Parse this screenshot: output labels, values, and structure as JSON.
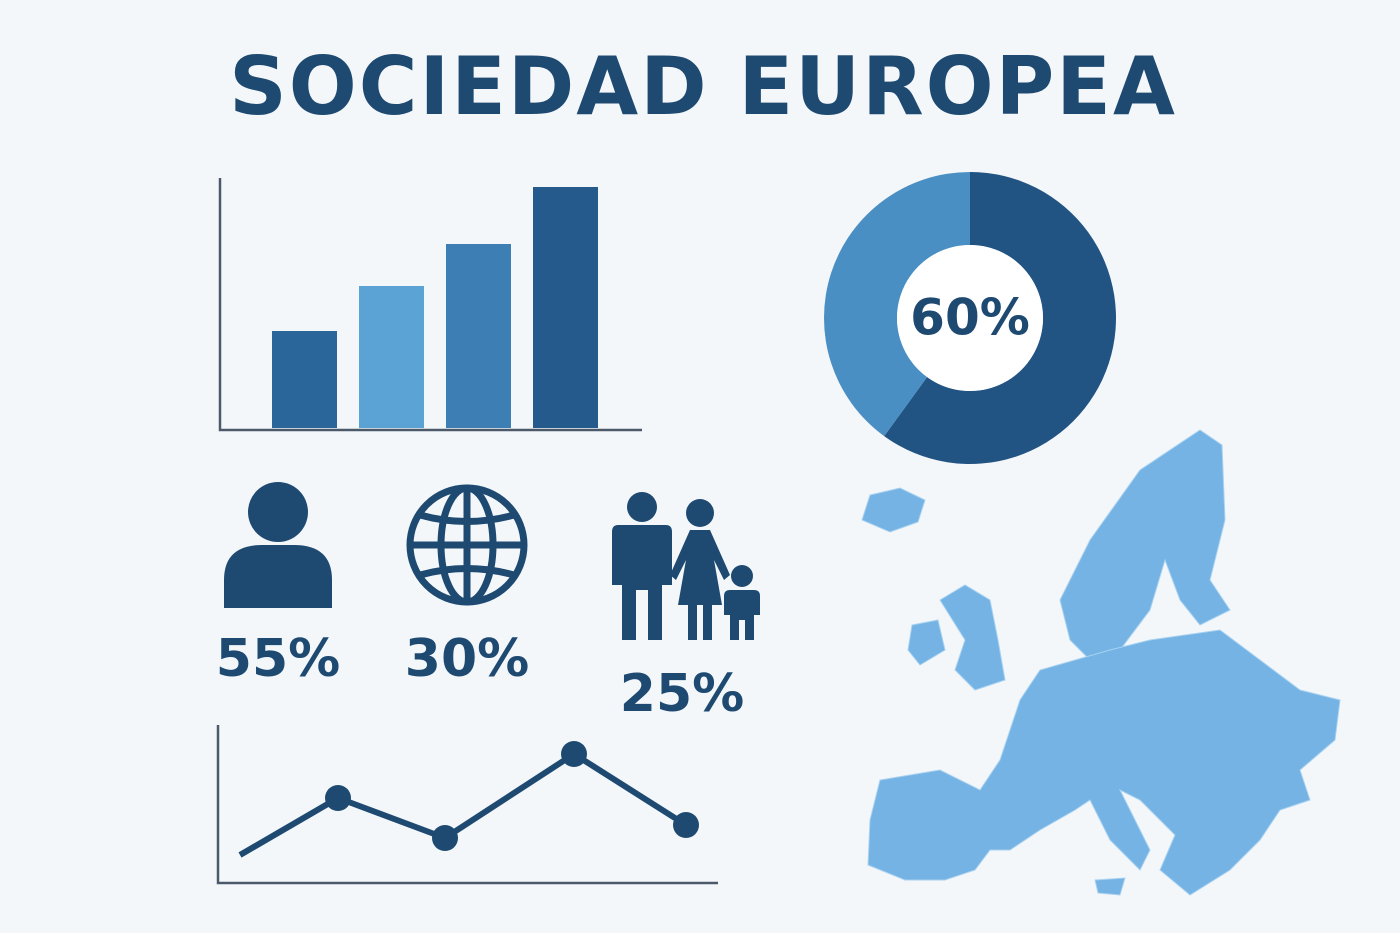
{
  "title": "SOCIEDAD EUROPEA",
  "chart_data": [
    {
      "type": "bar",
      "categories": [
        null,
        null,
        null,
        null
      ],
      "values": [
        97,
        142,
        184,
        241
      ],
      "colors": [
        "#2a6699",
        "#5ba3d4",
        "#3d7fb5",
        "#245b8c"
      ],
      "ylim": [
        0,
        250
      ]
    },
    {
      "type": "pie",
      "values": [
        60,
        40
      ],
      "value_labels": [
        "60%",
        null
      ],
      "colors": [
        "#215383",
        "#4a8fc4"
      ]
    },
    {
      "type": "line",
      "x": [
        22,
        120,
        227,
        356,
        468
      ],
      "values": [
        28,
        85,
        45,
        129,
        58
      ],
      "xlim": [
        0,
        500
      ],
      "ylim": [
        0,
        158
      ],
      "color": "#1e4a72"
    }
  ],
  "stats": [
    "55%",
    "30%",
    "25%"
  ]
}
